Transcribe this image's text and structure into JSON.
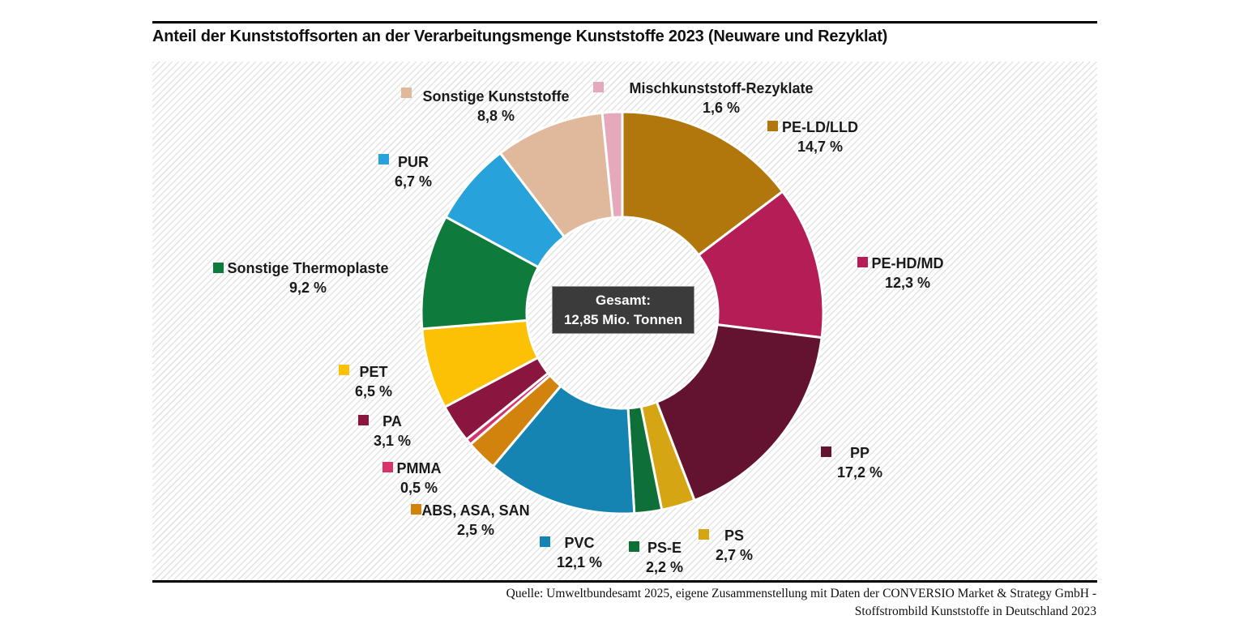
{
  "header": {
    "title": "Anteil der Kunststoffsorten an der Verarbeitungsmenge Kunststoffe 2023 (Neuware und Rezyklat)"
  },
  "center_label": {
    "line1": "Gesamt:",
    "line2": "12,85 Mio. Tonnen"
  },
  "footer": {
    "source_line1": "Quelle: Umweltbundesamt 2025, eigene Zusammenstellung mit Daten der CONVERSIO Market & Strategy GmbH -",
    "source_line2": "Stoffstrombild Kunststoffe in Deutschland 2023"
  },
  "chart_data": {
    "type": "pie",
    "subtype": "donut",
    "title": "Anteil der Kunststoffsorten an der Verarbeitungsmenge Kunststoffe 2023 (Neuware und Rezyklat)",
    "total_label": "Gesamt: 12,85 Mio. Tonnen",
    "total_value_mio_tonnen": 12.85,
    "unit": "%",
    "start_angle_deg_from_12_oclock": 0,
    "direction": "clockwise",
    "segments": [
      {
        "id": "pe-ld-lld",
        "label": "PE-LD/LLD",
        "value": 14.7,
        "value_label": "14,7 %",
        "color": "#b1770c"
      },
      {
        "id": "pe-hd-md",
        "label": "PE-HD/MD",
        "value": 12.3,
        "value_label": "12,3 %",
        "color": "#b41d56"
      },
      {
        "id": "pp",
        "label": "PP",
        "value": 17.2,
        "value_label": "17,2 %",
        "color": "#63132f"
      },
      {
        "id": "ps",
        "label": "PS",
        "value": 2.7,
        "value_label": "2,7 %",
        "color": "#d5a514"
      },
      {
        "id": "ps-e",
        "label": "PS-E",
        "value": 2.2,
        "value_label": "2,2 %",
        "color": "#0e6f39"
      },
      {
        "id": "pvc",
        "label": "PVC",
        "value": 12.1,
        "value_label": "12,1 %",
        "color": "#1584b2"
      },
      {
        "id": "abs-asa-san",
        "label": "ABS, ASA, SAN",
        "value": 2.5,
        "value_label": "2,5 %",
        "color": "#d2830e"
      },
      {
        "id": "pmma",
        "label": "PMMA",
        "value": 0.5,
        "value_label": "0,5 %",
        "color": "#d6336c"
      },
      {
        "id": "pa",
        "label": "PA",
        "value": 3.1,
        "value_label": "3,1 %",
        "color": "#8a1640"
      },
      {
        "id": "pet",
        "label": "PET",
        "value": 6.5,
        "value_label": "6,5 %",
        "color": "#fcc105"
      },
      {
        "id": "sonstige-thermoplaste",
        "label": "Sonstige Thermoplaste",
        "value": 9.2,
        "value_label": "9,2 %",
        "color": "#0e7a3c"
      },
      {
        "id": "pur",
        "label": "PUR",
        "value": 6.7,
        "value_label": "6,7 %",
        "color": "#27a2da"
      },
      {
        "id": "sonstige-kunststoffe",
        "label": "Sonstige Kunststoffe",
        "value": 8.8,
        "value_label": "8,8 %",
        "color": "#e0b89c"
      },
      {
        "id": "mischkunststoff-rezyklate",
        "label": "Mischkunststoff-Rezyklate",
        "value": 1.6,
        "value_label": "1,6 %",
        "color": "#e5a9bb"
      }
    ]
  }
}
